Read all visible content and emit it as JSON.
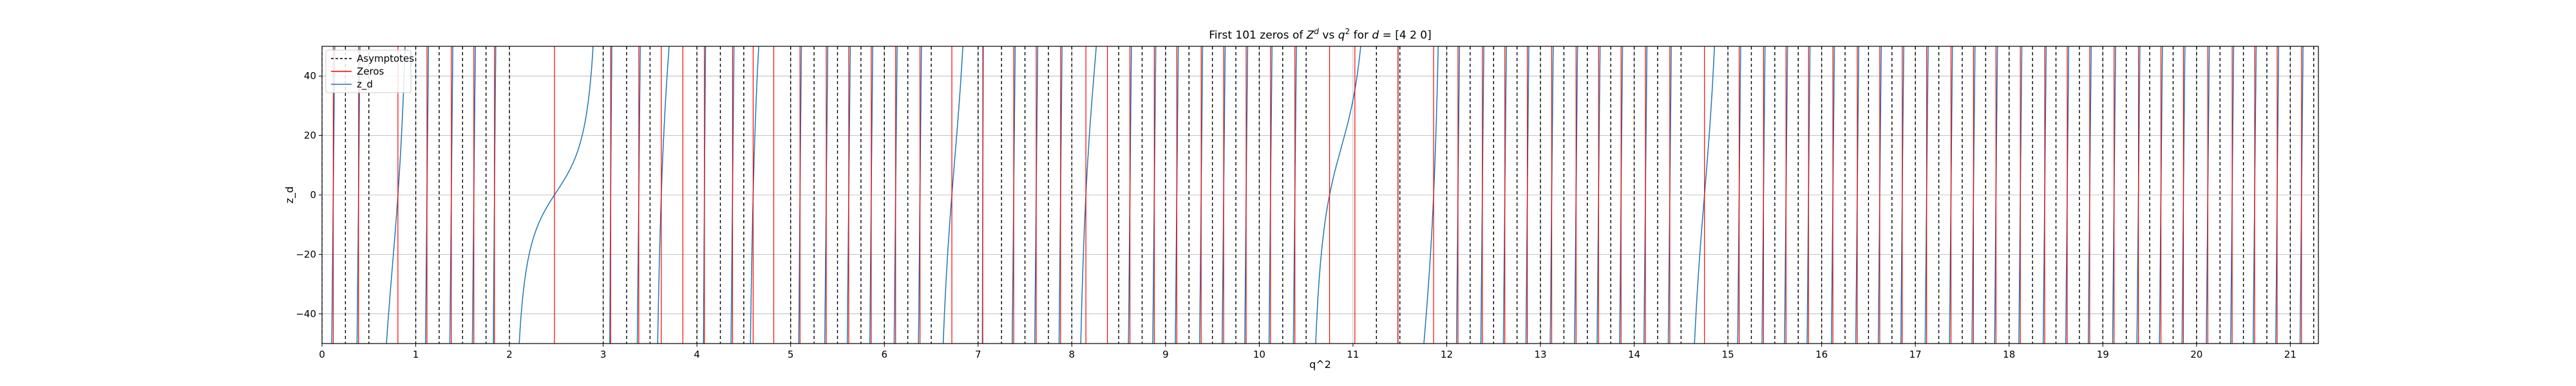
{
  "chart_data": {
    "type": "line",
    "title_parts": {
      "prefix": "First 101 zeros of ",
      "z_base": "Z",
      "z_sup": "d",
      "vs": " vs ",
      "q_base": "q",
      "q_sup": "2",
      "suffix": " for ",
      "d_symbol": "d",
      "d_value": " = [4 2 0]"
    },
    "xlabel": "q^2",
    "ylabel": "z_d",
    "xlim": [
      0,
      21.3
    ],
    "ylim": [
      -50,
      50
    ],
    "x_ticks": [
      0,
      1,
      2,
      3,
      4,
      5,
      6,
      7,
      8,
      9,
      10,
      11,
      12,
      13,
      14,
      15,
      16,
      17,
      18,
      19,
      20,
      21
    ],
    "y_ticks": [
      -40,
      -20,
      0,
      20,
      40
    ],
    "grid": true,
    "legend_position": "top-left",
    "legend": [
      {
        "label": "Asymptotes",
        "style": "dashed",
        "color": "#000000"
      },
      {
        "label": "Zeros",
        "style": "solid",
        "color": "#ff0000"
      },
      {
        "label": "z_d",
        "style": "solid",
        "color": "#1f77b4"
      }
    ],
    "asymptotes": [
      0,
      0.25,
      0.5,
      1.0,
      1.25,
      1.5,
      1.75,
      2.0,
      3.0,
      3.25,
      3.5,
      4.0,
      4.25,
      4.5,
      5.0,
      5.25,
      5.5,
      5.75,
      6.0,
      6.25,
      6.5,
      7.0,
      7.25,
      7.5,
      7.75,
      8.0,
      8.5,
      8.75,
      9.0,
      9.25,
      9.5,
      9.75,
      10.0,
      10.25,
      10.5,
      11.25,
      11.5,
      12.0,
      12.25,
      12.5,
      12.75,
      13.0,
      13.25,
      13.5,
      13.75,
      14.0,
      14.25,
      14.5,
      15.0,
      15.25,
      15.5,
      15.75,
      16.0,
      16.25,
      16.5,
      16.75,
      17.0,
      17.25,
      17.5,
      17.75,
      18.0,
      18.25,
      18.5,
      18.75,
      19.0,
      19.25,
      19.5,
      19.75,
      20.0,
      20.25,
      20.5,
      20.75,
      21.0,
      21.25
    ],
    "zeros": [
      0.12,
      0.39,
      0.81,
      1.12,
      1.38,
      1.62,
      1.84,
      2.48,
      3.08,
      3.38,
      3.62,
      3.85,
      4.08,
      4.38,
      4.6,
      4.82,
      5.1,
      5.38,
      5.62,
      5.86,
      6.12,
      6.38,
      6.72,
      7.05,
      7.38,
      7.62,
      7.88,
      8.15,
      8.38,
      8.62,
      8.88,
      9.12,
      9.38,
      9.62,
      9.86,
      10.12,
      10.38,
      10.75,
      11.02,
      11.48,
      11.86,
      12.12,
      12.38,
      12.62,
      12.86,
      13.12,
      13.38,
      13.62,
      13.86,
      14.12,
      14.38,
      14.75,
      15.12,
      15.38,
      15.62,
      15.86,
      16.12,
      16.38,
      16.62,
      16.86,
      17.12,
      17.38,
      17.62,
      17.86,
      18.12,
      18.38,
      18.62,
      18.86,
      19.12,
      19.38,
      19.62,
      19.86,
      20.12,
      20.38,
      20.62,
      20.86,
      21.12
    ]
  }
}
